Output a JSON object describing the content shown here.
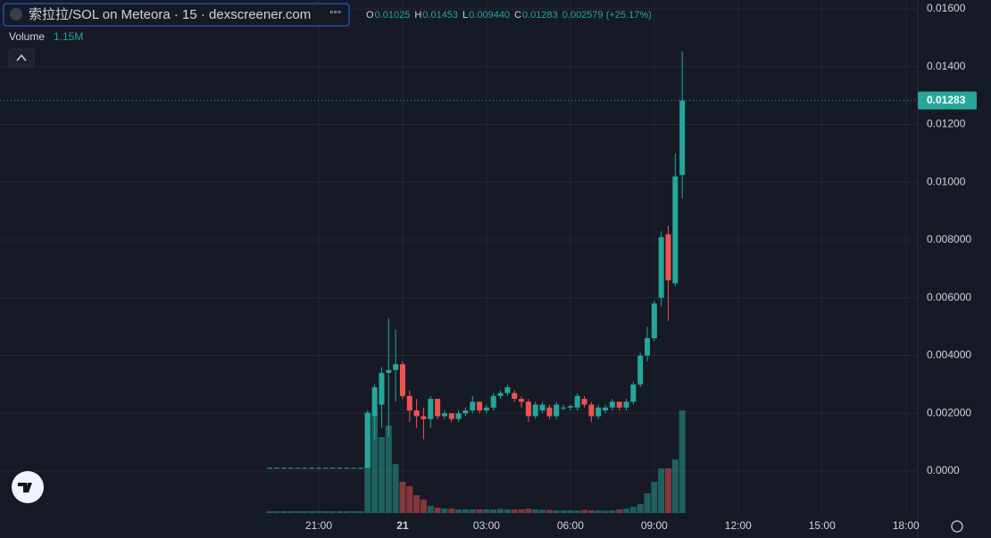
{
  "chart_data": {
    "type": "candlestick",
    "title": "索拉拉/SOL on Meteora · 15 · dexscreener.com",
    "legend": [
      {
        "key": "O",
        "value": "0.01025"
      },
      {
        "key": "H",
        "value": "0.01453"
      },
      {
        "key": "L",
        "value": "0.009440"
      },
      {
        "key": "C",
        "value": "0.01283"
      }
    ],
    "change": "0.002579 (+25.17%)",
    "volume_legend": {
      "label": "Volume",
      "value": "1.15M"
    },
    "up_color": "#26a69a",
    "down_color": "#ef5350",
    "grid": true,
    "x": [
      "19:15",
      "19:30",
      "19:45",
      "20:00",
      "20:15",
      "20:30",
      "20:45",
      "21:00",
      "21:15",
      "21:30",
      "21:45",
      "22:00",
      "22:15",
      "22:30",
      "22:45",
      "23:00",
      "23:15",
      "23:30",
      "23:45",
      "00:00",
      "00:15",
      "00:30",
      "00:45",
      "01:00",
      "01:15",
      "01:30",
      "01:45",
      "02:00",
      "02:15",
      "02:30",
      "02:45",
      "03:00",
      "03:15",
      "03:30",
      "03:45",
      "04:00",
      "04:15",
      "04:30",
      "04:45",
      "05:00",
      "05:15",
      "05:30",
      "05:45",
      "06:00",
      "06:15",
      "06:30",
      "06:45",
      "07:00",
      "07:15",
      "07:30",
      "07:45",
      "08:00",
      "08:15",
      "08:30",
      "08:45",
      "09:00",
      "09:15",
      "09:30",
      "09:45",
      "10:00"
    ],
    "open": [
      0.00011,
      0.00011,
      0.00011,
      0.00011,
      0.00011,
      0.00011,
      0.00011,
      0.00011,
      0.00011,
      0.00011,
      0.00011,
      0.00011,
      0.00011,
      0.00011,
      0.00011,
      0.0019,
      0.0023,
      0.0034,
      0.0035,
      0.0037,
      0.0026,
      0.0021,
      0.0019,
      0.0018,
      0.0025,
      0.0019,
      0.002,
      0.0018,
      0.002,
      0.0021,
      0.0024,
      0.0021,
      0.0022,
      0.0026,
      0.0027,
      0.0027,
      0.0025,
      0.0024,
      0.0019,
      0.0021,
      0.0022,
      0.0019,
      0.0022,
      0.0022,
      0.0022,
      0.0025,
      0.0023,
      0.0019,
      0.0021,
      0.0022,
      0.0024,
      0.0022,
      0.0024,
      0.003,
      0.004,
      0.0046,
      0.006,
      0.0082,
      0.0065,
      0.01025
    ],
    "high": [
      0.00012,
      0.00012,
      0.00012,
      0.00012,
      0.00012,
      0.00012,
      0.00012,
      0.00012,
      0.00012,
      0.00012,
      0.00012,
      0.00012,
      0.00012,
      0.00012,
      0.0021,
      0.003,
      0.0036,
      0.0053,
      0.0049,
      0.0038,
      0.0028,
      0.0025,
      0.0022,
      0.0026,
      0.0025,
      0.0021,
      0.002,
      0.0021,
      0.0022,
      0.0026,
      0.0024,
      0.0023,
      0.0027,
      0.0028,
      0.003,
      0.0028,
      0.0026,
      0.0025,
      0.0024,
      0.0024,
      0.0023,
      0.0024,
      0.0023,
      0.0023,
      0.0027,
      0.0026,
      0.0024,
      0.0023,
      0.0023,
      0.0025,
      0.0024,
      0.0025,
      0.0031,
      0.0041,
      0.005,
      0.0059,
      0.0083,
      0.0085,
      0.011,
      0.01453
    ],
    "low": [
      0.0001,
      0.0001,
      0.0001,
      0.0001,
      0.0001,
      0.0001,
      0.0001,
      0.0001,
      0.0001,
      0.0001,
      0.0001,
      0.0001,
      0.0001,
      0.0001,
      0.0001,
      0.0011,
      0.0015,
      0.0012,
      0.0024,
      0.0025,
      0.0017,
      0.0015,
      0.0011,
      0.0015,
      0.0018,
      0.0018,
      0.0017,
      0.0017,
      0.0019,
      0.002,
      0.002,
      0.002,
      0.0021,
      0.0025,
      0.0026,
      0.0024,
      0.0022,
      0.0017,
      0.0018,
      0.002,
      0.0018,
      0.0018,
      0.0021,
      0.0021,
      0.0021,
      0.0022,
      0.0017,
      0.0018,
      0.002,
      0.0021,
      0.0021,
      0.0021,
      0.0023,
      0.0029,
      0.0038,
      0.0045,
      0.0057,
      0.0052,
      0.0064,
      0.00944
    ],
    "close": [
      0.00011,
      0.00011,
      0.00011,
      0.00011,
      0.00011,
      0.00011,
      0.00011,
      0.00011,
      0.00011,
      0.00011,
      0.00011,
      0.00011,
      0.00011,
      0.00011,
      0.002,
      0.0029,
      0.0034,
      0.0035,
      0.0037,
      0.0026,
      0.0021,
      0.0019,
      0.0018,
      0.0025,
      0.0019,
      0.002,
      0.0018,
      0.002,
      0.0021,
      0.0024,
      0.0021,
      0.0022,
      0.0026,
      0.0027,
      0.0029,
      0.0025,
      0.0024,
      0.0019,
      0.0023,
      0.0023,
      0.0019,
      0.0023,
      0.0022,
      0.00225,
      0.0026,
      0.0023,
      0.0019,
      0.0022,
      0.0022,
      0.0024,
      0.0022,
      0.0024,
      0.003,
      0.004,
      0.0046,
      0.0058,
      0.0081,
      0.0066,
      0.0102,
      0.01283
    ],
    "volume": [
      20000,
      20000,
      20000,
      20000,
      20000,
      20000,
      20000,
      20000,
      20000,
      20000,
      20000,
      20000,
      20000,
      20000,
      1130000,
      1100000,
      850000,
      980000,
      550000,
      350000,
      300000,
      200000,
      150000,
      80000,
      60000,
      50000,
      50000,
      40000,
      40000,
      40000,
      40000,
      40000,
      40000,
      45000,
      40000,
      40000,
      40000,
      50000,
      40000,
      35000,
      35000,
      30000,
      30000,
      30000,
      30000,
      35000,
      30000,
      30000,
      25000,
      30000,
      40000,
      50000,
      70000,
      100000,
      220000,
      350000,
      500000,
      500000,
      600000,
      1150000
    ],
    "ylim": [
      -0.0007,
      0.0163
    ],
    "yticks": [
      {
        "value": 0,
        "label": "0.0000"
      },
      {
        "value": 0.002,
        "label": "0.002000"
      },
      {
        "value": 0.004,
        "label": "0.004000"
      },
      {
        "value": 0.006,
        "label": "0.006000"
      },
      {
        "value": 0.008,
        "label": "0.008000"
      },
      {
        "value": 0.01,
        "label": "0.01000"
      },
      {
        "value": 0.012,
        "label": "0.01200"
      },
      {
        "value": 0.014,
        "label": "0.01400"
      },
      {
        "value": 0.016,
        "label": "0.01600"
      }
    ],
    "xticks": [
      {
        "value": "21:00",
        "label": "21:00"
      },
      {
        "value": "00:00",
        "label": "21"
      },
      {
        "value": "03:00",
        "label": "03:00"
      },
      {
        "value": "06:00",
        "label": "06:00"
      },
      {
        "value": "09:00",
        "label": "09:00"
      },
      {
        "value": "12:00",
        "label": "12:00"
      },
      {
        "value": "15:00",
        "label": "15:00"
      },
      {
        "value": "18:00",
        "label": "18:00"
      }
    ]
  }
}
